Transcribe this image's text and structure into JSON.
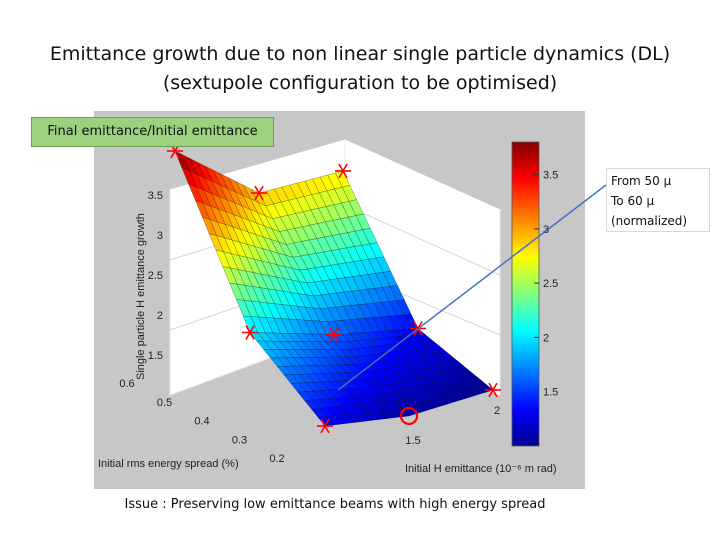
{
  "title_line1": "Emittance growth due to non linear single particle dynamics (DL)",
  "title_line2": "(sextupole configuration to be optimised)",
  "z_label_box": "Final emittance/Initial emittance",
  "callout": {
    "line1": "From 50 μ",
    "line2": "To 60 μ",
    "line3": "(normalized)"
  },
  "footer": "Issue : Preserving low emittance beams with high energy spread",
  "chart_data": {
    "type": "surface",
    "xlabel": "Initial rms energy spread (%)",
    "ylabel": "Initial H emittance (10⁻⁶ m rad)",
    "zlabel": "Single particle H emittance growth",
    "x_ticks": [
      "0.2",
      "0.3",
      "0.4",
      "0.5",
      "0.6"
    ],
    "y_ticks": [
      "1.5",
      "2"
    ],
    "z_ticks": [
      "1.5",
      "2",
      "2.5",
      "3",
      "3.5"
    ],
    "colorbar_ticks": [
      "1.5",
      "2",
      "2.5",
      "3",
      "3.5"
    ],
    "colorbar_range": [
      1,
      3.8
    ],
    "colormap": [
      "#00008f",
      "#0000ff",
      "#00ffff",
      "#ffff00",
      "#ff0000",
      "#800000"
    ],
    "energy_spread": [
      0.2,
      0.4,
      0.6
    ],
    "emittance": [
      1.0,
      1.5,
      2.0
    ],
    "growth": [
      [
        1.3,
        1.05,
        1.0
      ],
      [
        2.0,
        1.6,
        1.3
      ],
      [
        3.8,
        2.9,
        2.8
      ]
    ],
    "highlighted_point": {
      "energy_spread": 0.2,
      "emittance": 1.5,
      "growth": 1.2,
      "marker": "circle",
      "color": "#ff0000"
    },
    "point_marker": "asterisk",
    "point_color": "#ff0000"
  }
}
